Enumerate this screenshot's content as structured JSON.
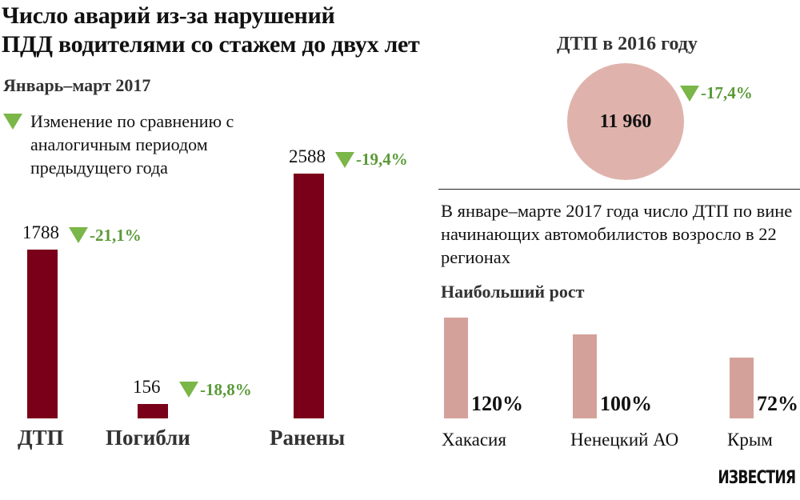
{
  "title_line1": "Число аварий из-за нарушений",
  "title_line2": "ПДД водителями со стажем до двух лет",
  "subtitle": "Январь–март 2017",
  "legend": {
    "icon": "triangle-down-icon",
    "text": "Изменение по сравнению с аналогичным периодом предыдущего года"
  },
  "colors": {
    "bar": "#7a0019",
    "change": "#5a9a38",
    "triangle": "#7ab648",
    "circle": "#dfb3ac",
    "region_bar": "#d4a19a"
  },
  "chart_data": [
    {
      "type": "bar",
      "title": "Январь–март 2017",
      "categories": [
        "ДТП",
        "Погибли",
        "Ранены"
      ],
      "values": [
        1788,
        156,
        2588
      ],
      "value_labels": [
        "1788",
        "156",
        "2588"
      ],
      "changes": [
        "-21,1%",
        "-18,8%",
        "-19,4%"
      ],
      "ylim": [
        0,
        2588
      ]
    },
    {
      "type": "bar",
      "title": "Наибольший рост",
      "categories": [
        "Хакасия",
        "Ненецкий АО",
        "Крым"
      ],
      "values": [
        120,
        100,
        72
      ],
      "value_labels": [
        "120%",
        "100%",
        "72%"
      ],
      "ylim": [
        0,
        120
      ]
    }
  ],
  "circle": {
    "title": "ДТП в 2016 году",
    "value": "11 960",
    "change": "-17,4%"
  },
  "note": "В январе–марте 2017 года число ДТП по вине начинающих автомобилистов возросло в 22 регионах",
  "logo": "ИЗВЕСТИЯ"
}
